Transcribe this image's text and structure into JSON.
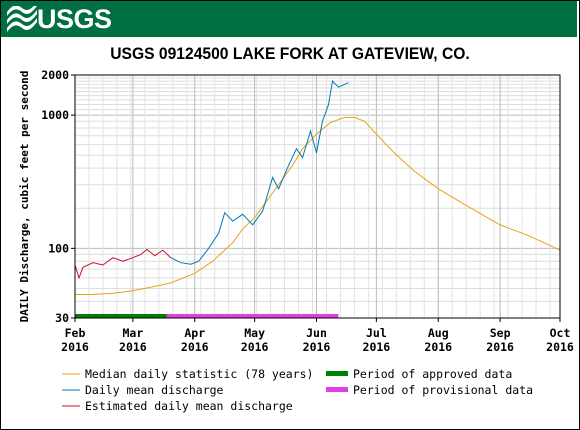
{
  "banner": {
    "agency": "USGS",
    "color": "#006f41"
  },
  "chart_data": {
    "type": "line",
    "title": "USGS 09124500 LAKE FORK AT GATEVIEW, CO.",
    "ylabel": "DAILY Discharge, cubic feet per second",
    "xlabel": "",
    "y_scale": "log",
    "ylim": [
      30,
      2000
    ],
    "xlim": [
      "2016-02-01",
      "2016-10-01"
    ],
    "y_ticks": [
      {
        "value": 30,
        "label": "30"
      },
      {
        "value": 100,
        "label": "100"
      },
      {
        "value": 1000,
        "label": "1000"
      },
      {
        "value": 2000,
        "label": "2000"
      }
    ],
    "x_ticks": [
      {
        "date": "2016-02-01",
        "month": "Feb",
        "year": "2016"
      },
      {
        "date": "2016-03-01",
        "month": "Mar",
        "year": "2016"
      },
      {
        "date": "2016-04-01",
        "month": "Apr",
        "year": "2016"
      },
      {
        "date": "2016-05-01",
        "month": "May",
        "year": "2016"
      },
      {
        "date": "2016-06-01",
        "month": "Jun",
        "year": "2016"
      },
      {
        "date": "2016-07-01",
        "month": "Jul",
        "year": "2016"
      },
      {
        "date": "2016-08-01",
        "month": "Aug",
        "year": "2016"
      },
      {
        "date": "2016-09-01",
        "month": "Sep",
        "year": "2016"
      },
      {
        "date": "2016-10-01",
        "month": "Oct",
        "year": "2016"
      }
    ],
    "grid": true,
    "series": [
      {
        "name": "Median daily statistic (78 years)",
        "color": "#e8a317",
        "points": [
          [
            "2016-02-01",
            45
          ],
          [
            "2016-02-10",
            45
          ],
          [
            "2016-02-20",
            46
          ],
          [
            "2016-03-01",
            48
          ],
          [
            "2016-03-10",
            51
          ],
          [
            "2016-03-20",
            55
          ],
          [
            "2016-04-01",
            65
          ],
          [
            "2016-04-10",
            80
          ],
          [
            "2016-04-20",
            110
          ],
          [
            "2016-04-25",
            140
          ],
          [
            "2016-05-01",
            170
          ],
          [
            "2016-05-10",
            260
          ],
          [
            "2016-05-20",
            420
          ],
          [
            "2016-05-25",
            560
          ],
          [
            "2016-06-01",
            720
          ],
          [
            "2016-06-08",
            880
          ],
          [
            "2016-06-15",
            960
          ],
          [
            "2016-06-20",
            960
          ],
          [
            "2016-06-25",
            900
          ],
          [
            "2016-07-01",
            720
          ],
          [
            "2016-07-10",
            520
          ],
          [
            "2016-07-20",
            380
          ],
          [
            "2016-08-01",
            280
          ],
          [
            "2016-08-15",
            210
          ],
          [
            "2016-09-01",
            150
          ],
          [
            "2016-09-15",
            125
          ],
          [
            "2016-10-01",
            97
          ]
        ]
      },
      {
        "name": "Daily mean discharge",
        "color": "#0078b4",
        "points": [
          [
            "2016-03-20",
            85
          ],
          [
            "2016-03-25",
            78
          ],
          [
            "2016-03-30",
            76
          ],
          [
            "2016-04-03",
            80
          ],
          [
            "2016-04-08",
            100
          ],
          [
            "2016-04-13",
            130
          ],
          [
            "2016-04-16",
            185
          ],
          [
            "2016-04-20",
            160
          ],
          [
            "2016-04-25",
            180
          ],
          [
            "2016-04-30",
            150
          ],
          [
            "2016-05-05",
            190
          ],
          [
            "2016-05-10",
            340
          ],
          [
            "2016-05-13",
            280
          ],
          [
            "2016-05-18",
            420
          ],
          [
            "2016-05-22",
            560
          ],
          [
            "2016-05-25",
            480
          ],
          [
            "2016-05-29",
            760
          ],
          [
            "2016-06-01",
            520
          ],
          [
            "2016-06-04",
            900
          ],
          [
            "2016-06-07",
            1200
          ],
          [
            "2016-06-09",
            1800
          ],
          [
            "2016-06-12",
            1620
          ],
          [
            "2016-06-15",
            1700
          ],
          [
            "2016-06-17",
            1750
          ]
        ]
      },
      {
        "name": "Estimated daily mean discharge",
        "color": "#c8102e",
        "points": [
          [
            "2016-02-01",
            75
          ],
          [
            "2016-02-03",
            60
          ],
          [
            "2016-02-05",
            72
          ],
          [
            "2016-02-10",
            78
          ],
          [
            "2016-02-15",
            75
          ],
          [
            "2016-02-20",
            85
          ],
          [
            "2016-02-25",
            80
          ],
          [
            "2016-03-01",
            85
          ],
          [
            "2016-03-05",
            90
          ],
          [
            "2016-03-08",
            98
          ],
          [
            "2016-03-12",
            88
          ],
          [
            "2016-03-16",
            97
          ],
          [
            "2016-03-20",
            85
          ]
        ]
      }
    ],
    "periods": [
      {
        "name": "Period of approved data",
        "color": "#008000",
        "start": "2016-02-01",
        "end": "2016-03-18"
      },
      {
        "name": "Period of provisional data",
        "color": "#e040e0",
        "start": "2016-03-18",
        "end": "2016-06-12"
      }
    ]
  }
}
